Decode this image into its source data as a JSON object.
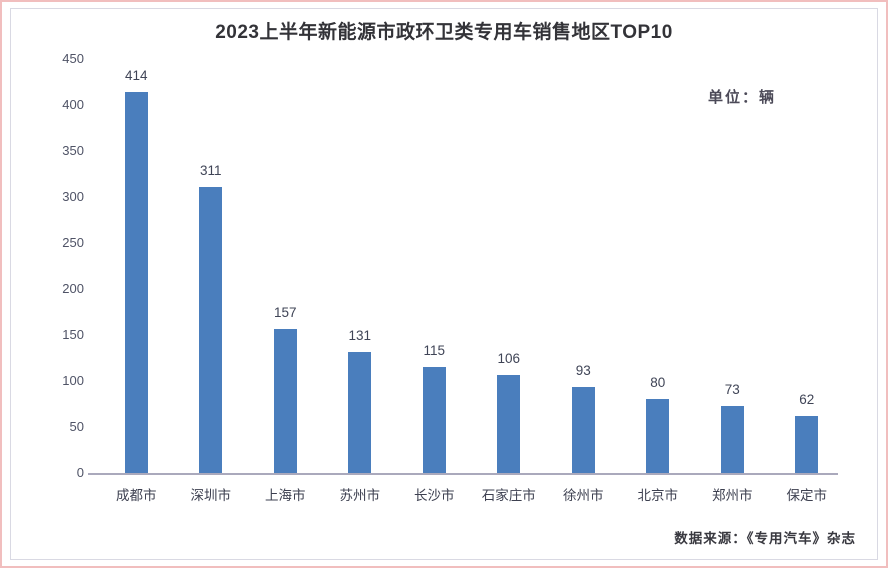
{
  "page": {
    "source_note": "数据来源：《专用汽车》杂志"
  },
  "chart_data": {
    "type": "bar",
    "title": "2023上半年新能源市政环卫类专用车销售地区TOP10",
    "unit_label": "单位：辆",
    "categories": [
      "成都市",
      "深圳市",
      "上海市",
      "苏州市",
      "长沙市",
      "石家庄市",
      "徐州市",
      "北京市",
      "郑州市",
      "保定市"
    ],
    "values": [
      414,
      311,
      157,
      131,
      115,
      106,
      93,
      80,
      73,
      62
    ],
    "xlabel": "",
    "ylabel": "",
    "ylim": [
      0,
      450
    ],
    "yticks": [
      0,
      50,
      100,
      150,
      200,
      250,
      300,
      350,
      400,
      450
    ],
    "grid": false,
    "legend_position": "none",
    "bar_color": "#4a7ebd",
    "axis_color": "#aaa9bc"
  }
}
